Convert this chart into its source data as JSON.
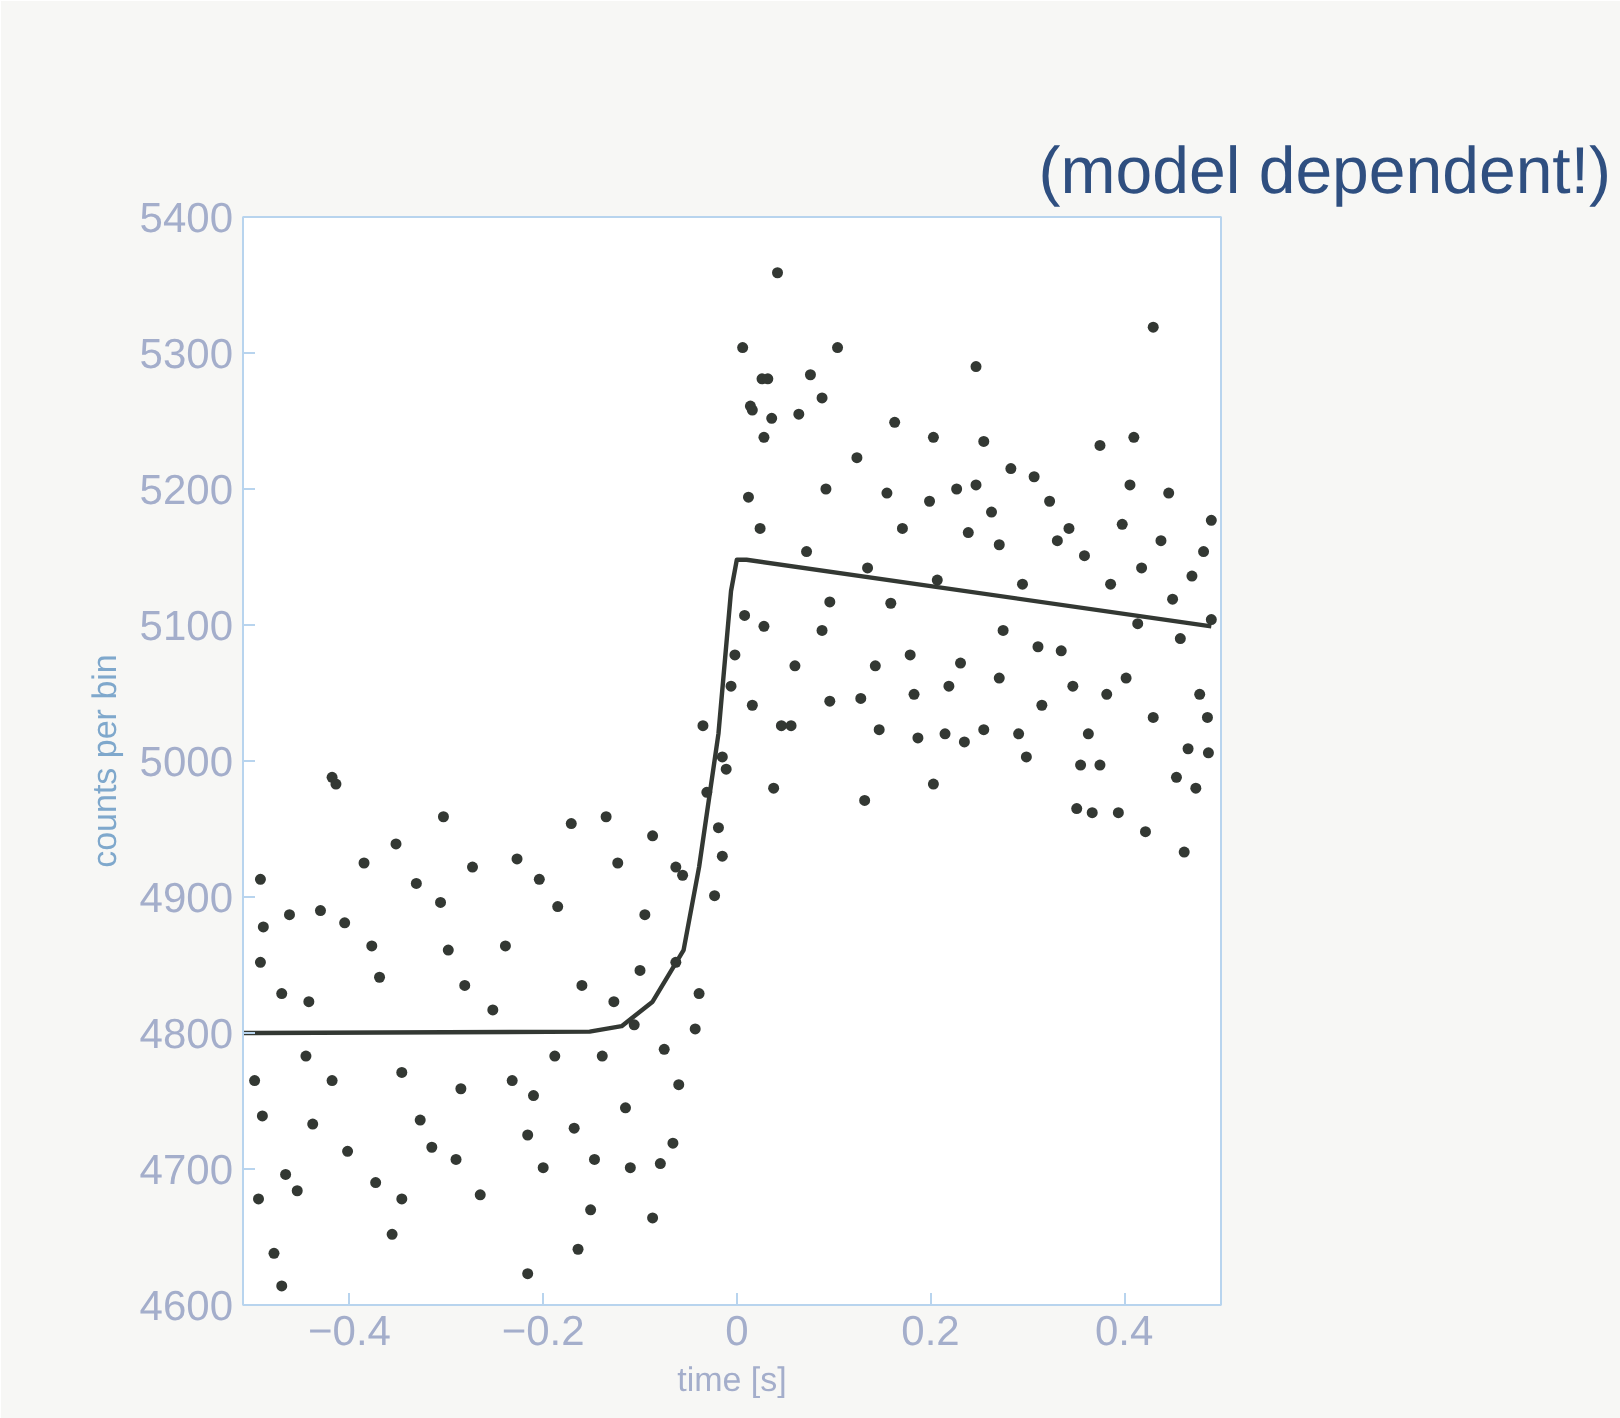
{
  "chart_data": {
    "type": "scatter",
    "xlabel": "time [s]",
    "ylabel": "counts per bin",
    "annotations": [
      "(model dependent!)"
    ],
    "xlim": [
      -0.51,
      0.5
    ],
    "ylim": [
      4600,
      5400
    ],
    "xticks": [
      -0.4,
      -0.2,
      0,
      0.2,
      0.4
    ],
    "yticks": [
      4600,
      4700,
      4800,
      4900,
      5000,
      5100,
      5200,
      5300,
      5400
    ],
    "grid": false,
    "series": [
      {
        "marker": "circle",
        "color": "#333833",
        "x": [
          -0.492,
          -0.489,
          -0.492,
          -0.47,
          -0.498,
          -0.49,
          -0.494,
          -0.478,
          -0.47,
          -0.466,
          -0.454,
          -0.462,
          -0.43,
          -0.442,
          -0.445,
          -0.438,
          -0.418,
          -0.414,
          -0.405,
          -0.418,
          -0.402,
          -0.385,
          -0.377,
          -0.369,
          -0.373,
          -0.356,
          -0.352,
          -0.346,
          -0.346,
          -0.331,
          -0.327,
          -0.315,
          -0.303,
          -0.306,
          -0.298,
          -0.29,
          -0.285,
          -0.273,
          -0.281,
          -0.265,
          -0.252,
          -0.239,
          -0.232,
          -0.227,
          -0.216,
          -0.216,
          -0.21,
          -0.204,
          -0.2,
          -0.185,
          -0.188,
          -0.171,
          -0.168,
          -0.164,
          -0.16,
          -0.151,
          -0.147,
          -0.139,
          -0.135,
          -0.127,
          -0.123,
          -0.115,
          -0.11,
          -0.106,
          -0.1,
          -0.095,
          -0.087,
          -0.087,
          -0.079,
          -0.075,
          -0.066,
          -0.063,
          -0.063,
          -0.06,
          -0.056,
          -0.043,
          -0.039,
          -0.035,
          -0.031,
          -0.023,
          -0.019,
          -0.015,
          -0.015,
          -0.011,
          -0.006,
          -0.002,
          0.006,
          0.014,
          0.026,
          0.042,
          0.038,
          0.046,
          0.016,
          0.028,
          0.036,
          0.032,
          0.012,
          0.024,
          0.008,
          0.028,
          0.016,
          0.056,
          0.064,
          0.076,
          0.088,
          0.104,
          0.092,
          0.072,
          0.096,
          0.088,
          0.06,
          0.096,
          0.124,
          0.128,
          0.132,
          0.143,
          0.135,
          0.147,
          0.155,
          0.159,
          0.163,
          0.171,
          0.179,
          0.183,
          0.187,
          0.199,
          0.203,
          0.203,
          0.207,
          0.215,
          0.219,
          0.227,
          0.231,
          0.235,
          0.239,
          0.247,
          0.247,
          0.255,
          0.255,
          0.263,
          0.271,
          0.275,
          0.271,
          0.283,
          0.291,
          0.295,
          0.299,
          0.307,
          0.311,
          0.315,
          0.323,
          0.331,
          0.335,
          0.343,
          0.347,
          0.351,
          0.355,
          0.359,
          0.363,
          0.367,
          0.375,
          0.375,
          0.382,
          0.386,
          0.394,
          0.398,
          0.402,
          0.406,
          0.41,
          0.414,
          0.418,
          0.422,
          0.43,
          0.43,
          0.438,
          0.446,
          0.45,
          0.454,
          0.458,
          0.462,
          0.466,
          0.47,
          0.474,
          0.478,
          0.482,
          0.486,
          0.487,
          0.49,
          0.49
        ],
        "values": [
          4913,
          4878,
          4852,
          4829,
          4765,
          4739,
          4678,
          4638,
          4614,
          4696,
          4684,
          4887,
          4890,
          4823,
          4783,
          4733,
          4988,
          4983,
          4881,
          4765,
          4713,
          4925,
          4864,
          4841,
          4690,
          4652,
          4939,
          4678,
          4771,
          4910,
          4736,
          4716,
          4959,
          4896,
          4861,
          4707,
          4759,
          4922,
          4835,
          4681,
          4817,
          4864,
          4765,
          4928,
          4623,
          4725,
          4754,
          4913,
          4701,
          4893,
          4783,
          4954,
          4730,
          4641,
          4835,
          4670,
          4707,
          4783,
          4959,
          4823,
          4925,
          4745,
          4701,
          4806,
          4846,
          4887,
          4664,
          4945,
          4704,
          4788,
          4719,
          4922,
          4852,
          4762,
          4916,
          4803,
          4829,
          5026,
          4977,
          4901,
          4951,
          4930,
          5003,
          4994,
          5055,
          5078,
          5304,
          5261,
          5281,
          5359,
          4980,
          5026,
          5258,
          5238,
          5252,
          5281,
          5194,
          5171,
          5107,
          5099,
          5041,
          5026,
          5255,
          5284,
          5267,
          5304,
          5200,
          5154,
          5117,
          5096,
          5070,
          5044,
          5223,
          5046,
          4971,
          5070,
          5142,
          5023,
          5197,
          5116,
          5249,
          5171,
          5078,
          5049,
          5017,
          5191,
          5238,
          4983,
          5133,
          5020,
          5055,
          5200,
          5072,
          5014,
          5168,
          5290,
          5203,
          5235,
          5023,
          5183,
          5159,
          5096,
          5061,
          5215,
          5020,
          5130,
          5003,
          5209,
          5084,
          5041,
          5191,
          5162,
          5081,
          5171,
          5055,
          4965,
          4997,
          5151,
          5020,
          4962,
          5232,
          4997,
          5049,
          5130,
          4962,
          5174,
          5061,
          5203,
          5238,
          5101,
          5142,
          4948,
          5319,
          5032,
          5162,
          5197,
          5119,
          4988,
          5090,
          4933,
          5009,
          5136,
          4980,
          5049,
          5154,
          5032,
          5006,
          5177,
          5104
        ]
      },
      {
        "type": "line",
        "color": "#333833",
        "x": [
          -0.51,
          -0.152,
          -0.119,
          -0.087,
          -0.055,
          -0.039,
          -0.019,
          -0.006,
          0,
          0.01,
          0.49
        ],
        "values": [
          4800,
          4801,
          4805,
          4823,
          4861,
          4922,
          5020,
          5125,
          5148,
          5148,
          5099
        ]
      }
    ]
  }
}
